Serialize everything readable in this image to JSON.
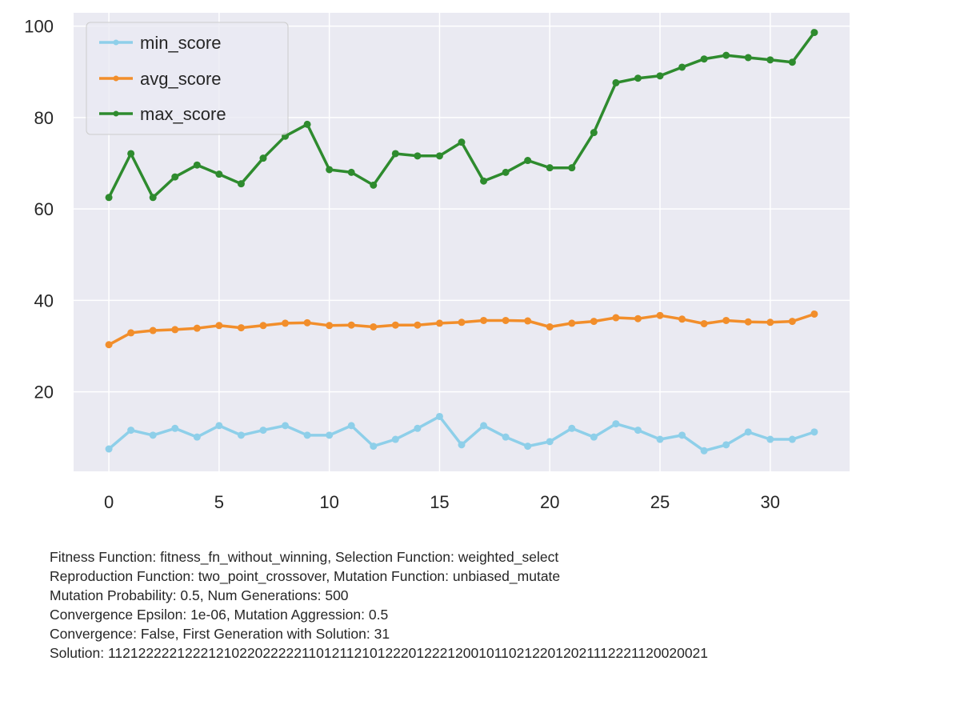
{
  "chart_data": {
    "type": "line",
    "x": [
      0,
      1,
      2,
      3,
      4,
      5,
      6,
      7,
      8,
      9,
      10,
      11,
      12,
      13,
      14,
      15,
      16,
      17,
      18,
      19,
      20,
      21,
      22,
      23,
      24,
      25,
      26,
      27,
      28,
      29,
      30,
      31,
      32
    ],
    "xlim": [
      -1.6,
      33.6
    ],
    "ylim": [
      2.6,
      102.9
    ],
    "xticks": [
      0,
      5,
      10,
      15,
      20,
      25,
      30
    ],
    "yticks": [
      20,
      40,
      60,
      80,
      100
    ],
    "grid": true,
    "legend_position": "upper-left",
    "series": [
      {
        "name": "min_score",
        "color": "#8ecfe9",
        "values": [
          7.5,
          11.6,
          10.5,
          12.0,
          10.1,
          12.6,
          10.5,
          11.6,
          12.6,
          10.5,
          10.5,
          12.6,
          8.1,
          9.6,
          12.0,
          14.6,
          8.4,
          12.6,
          10.1,
          8.1,
          9.1,
          12.0,
          10.1,
          13.0,
          11.6,
          9.6,
          10.5,
          7.1,
          8.4,
          11.2,
          9.6,
          9.6,
          11.2
        ]
      },
      {
        "name": "avg_score",
        "color": "#f28e2b",
        "values": [
          30.3,
          32.9,
          33.4,
          33.6,
          33.9,
          34.5,
          34.0,
          34.5,
          35.0,
          35.1,
          34.5,
          34.6,
          34.2,
          34.6,
          34.6,
          35.0,
          35.2,
          35.6,
          35.6,
          35.5,
          34.2,
          35.0,
          35.4,
          36.2,
          36.0,
          36.7,
          35.9,
          34.9,
          35.6,
          35.3,
          35.2,
          35.4,
          37.0
        ]
      },
      {
        "name": "max_score",
        "color": "#2e8b2e",
        "values": [
          62.5,
          72.1,
          62.5,
          67.0,
          69.6,
          67.6,
          65.5,
          71.1,
          75.9,
          78.5,
          68.6,
          68.0,
          65.2,
          72.1,
          71.6,
          71.6,
          74.6,
          66.1,
          68.0,
          70.6,
          69.0,
          69.0,
          76.7,
          87.6,
          88.6,
          89.1,
          91.0,
          92.8,
          93.6,
          93.1,
          92.6,
          92.1,
          98.6
        ]
      }
    ]
  },
  "caption": {
    "lines": [
      "Fitness Function: fitness_fn_without_winning, Selection Function: weighted_select",
      "Reproduction Function: two_point_crossover, Mutation Function: unbiased_mutate",
      "Mutation Probability: 0.5, Num Generations: 500",
      "Convergence Epsilon: 1e-06, Mutation Aggression: 0.5",
      "Convergence: False, First Generation with Solution: 31",
      "Solution: 112122222122212102202222211012112101222012221200101102122012021112221120020021"
    ]
  }
}
